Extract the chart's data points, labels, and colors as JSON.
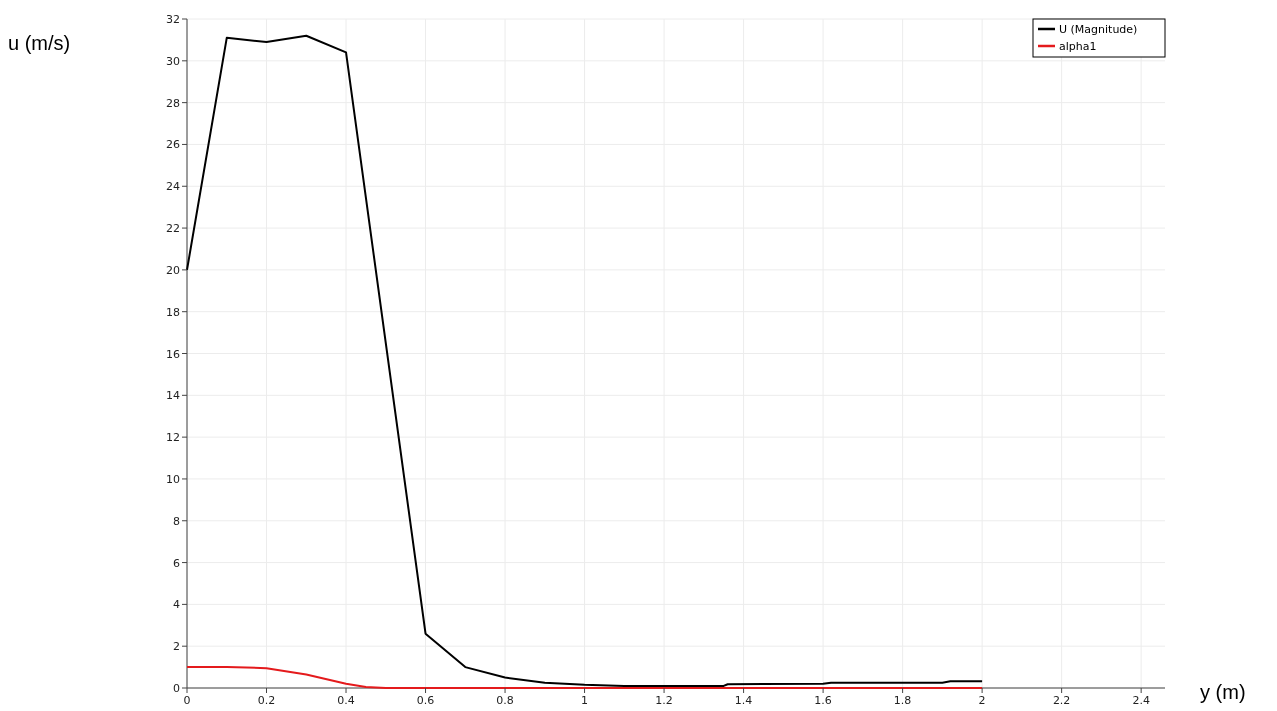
{
  "chart_data": {
    "type": "line",
    "xlabel": "y (m)",
    "ylabel": "u (m/s)",
    "xlim": [
      0,
      2.46
    ],
    "xticks": [
      0,
      0.2,
      0.4,
      0.6,
      0.8,
      1,
      1.2,
      1.4,
      1.6,
      1.8,
      2,
      2.2,
      2.4
    ],
    "ylim": [
      0,
      32
    ],
    "yticks": [
      0,
      2,
      4,
      6,
      8,
      10,
      12,
      14,
      16,
      18,
      20,
      22,
      24,
      26,
      28,
      30,
      32
    ],
    "grid": true,
    "legend": "top right",
    "marker": "none",
    "line_style": "solid",
    "series": [
      {
        "name": "U (Magnitude)",
        "color": "#000000",
        "x": [
          0,
          0.1,
          0.2,
          0.3,
          0.4,
          0.6,
          0.7,
          0.8,
          0.9,
          1.0,
          1.1,
          1.35,
          1.36,
          1.6,
          1.62,
          1.9,
          1.92,
          2.0
        ],
        "values": [
          20,
          31.1,
          30.9,
          31.2,
          30.4,
          2.6,
          1.0,
          0.5,
          0.25,
          0.15,
          0.1,
          0.1,
          0.18,
          0.2,
          0.25,
          0.25,
          0.32,
          0.32
        ]
      },
      {
        "name": "alpha1",
        "color": "#e41a1c",
        "x": [
          0,
          0.1,
          0.2,
          0.3,
          0.4,
          0.45,
          0.5,
          1.0,
          1.5,
          2.0
        ],
        "values": [
          1,
          1,
          0.95,
          0.65,
          0.2,
          0.05,
          0,
          0,
          0,
          0
        ]
      }
    ]
  }
}
